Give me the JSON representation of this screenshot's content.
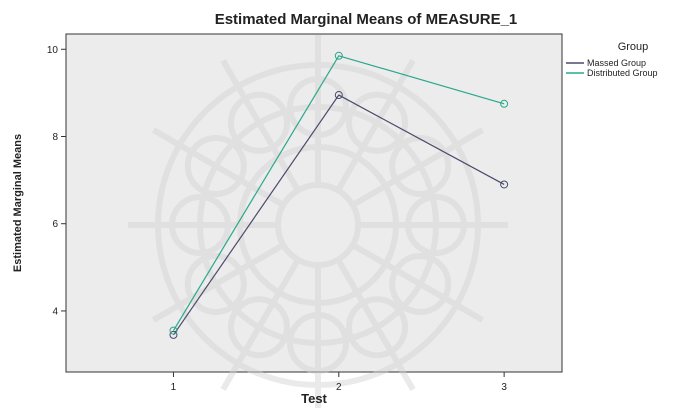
{
  "chart_data": {
    "type": "line",
    "title": "Estimated Marginal Means of MEASURE_1",
    "xlabel": "Test",
    "ylabel": "Estimated Marginal Means",
    "x": [
      1,
      2,
      3
    ],
    "xlim": [
      0.35,
      3.35
    ],
    "ylim": [
      2.6,
      10.35
    ],
    "yticks": [
      4,
      6,
      8,
      10
    ],
    "legend": {
      "title": "Group",
      "placement": "top-right"
    },
    "grid": false,
    "series": [
      {
        "name": "Massed Group",
        "values": [
          3.45,
          8.95,
          6.9
        ],
        "color": "#4a4a6e"
      },
      {
        "name": "Distributed Group",
        "values": [
          3.55,
          9.85,
          8.75
        ],
        "color": "#2aa88a"
      }
    ],
    "colors": {
      "plot_background": "#ececec",
      "axis": "#333333"
    }
  }
}
